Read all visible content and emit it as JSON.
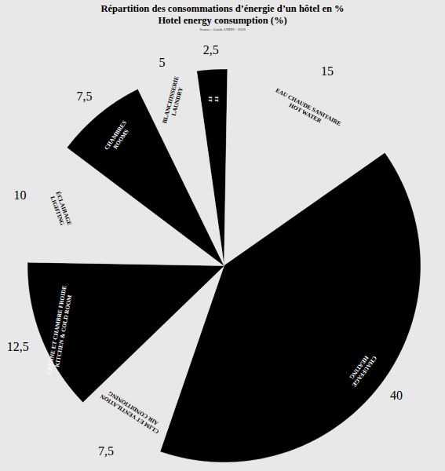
{
  "chart_data": {
    "type": "pie",
    "title": "Répartition des consommations d’énergie d’un hôtel en %",
    "subtitle": "Hotel energy consumption (%)",
    "caption": "Source : Guide UMIH - 2018",
    "categories": [
      "IT\nIT",
      "EAU CHAUDE SANITAIRE\nHOT WATER",
      "CHAUFFAGE\nHEATING",
      "CLIM ET VENTILATION\nAIR CONDITIONING",
      "CUISINE ET CHAMBRE FROIDE\nKITCHEN & COLD ROOM",
      "ÉCLAIRAGE\nLIGHTING",
      "CHAMBRES\nROOMS",
      "BLANCHISSERIE\nLAUNDRY"
    ],
    "values": [
      2.5,
      15,
      40,
      7.5,
      12.5,
      10,
      7.5,
      5
    ],
    "value_labels": [
      "2,5",
      "15",
      "40",
      "7,5",
      "12,5",
      "10",
      "7,5",
      "5"
    ],
    "colors": [
      "#000000",
      "#e8e8e8",
      "#000000",
      "#e8e8e8",
      "#000000",
      "#e8e8e8",
      "#000000",
      "#e8e8e8"
    ],
    "data_labels": true
  }
}
